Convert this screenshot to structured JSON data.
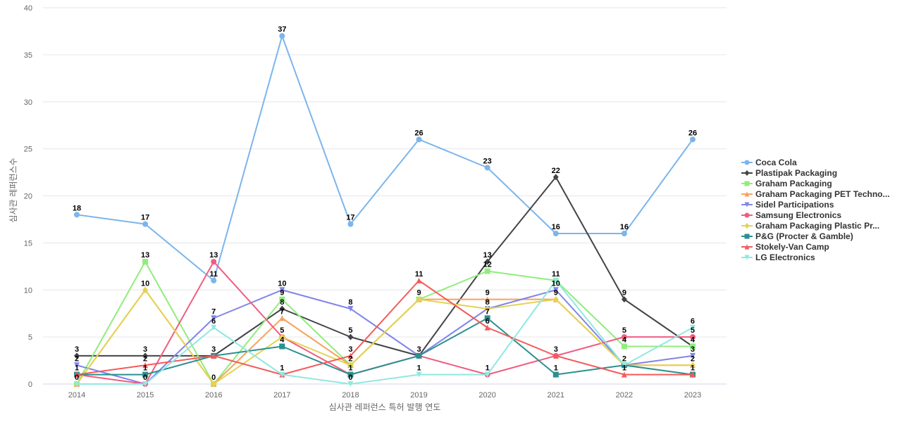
{
  "chart_data": {
    "type": "line",
    "x": [
      "2014",
      "2015",
      "2016",
      "2017",
      "2018",
      "2019",
      "2020",
      "2021",
      "2022",
      "2023"
    ],
    "xlabel": "심사관 레퍼런스 특허 발행 연도",
    "ylabel": "심사관 레퍼런스수",
    "ylim": [
      0,
      40
    ],
    "yticks": [
      0,
      5,
      10,
      15,
      20,
      25,
      30,
      35,
      40
    ],
    "grid": true,
    "legend_position": "right",
    "series": [
      {
        "name": "Coca Cola",
        "color": "#7cb5ec",
        "marker": "circle",
        "values": [
          18,
          17,
          11,
          37,
          17,
          26,
          23,
          16,
          16,
          26
        ]
      },
      {
        "name": "Plastipak Packaging",
        "color": "#434348",
        "marker": "diamond",
        "values": [
          3,
          3,
          3,
          8,
          5,
          3,
          13,
          22,
          9,
          4
        ]
      },
      {
        "name": "Graham Packaging",
        "color": "#90ed7d",
        "marker": "square",
        "values": [
          0,
          13,
          0,
          9,
          2,
          9,
          12,
          11,
          4,
          4
        ]
      },
      {
        "name": "Graham Packaging PET Techno...",
        "color": "#f7a35c",
        "marker": "triangle",
        "values": [
          0,
          10,
          0,
          7,
          2,
          9,
          9,
          9,
          2,
          2
        ]
      },
      {
        "name": "Sidel Participations",
        "color": "#8085e9",
        "marker": "triangle-down",
        "values": [
          2,
          0,
          7,
          10,
          8,
          3,
          8,
          10,
          2,
          3
        ]
      },
      {
        "name": "Samsung Electronics",
        "color": "#f15c80",
        "marker": "circle",
        "values": [
          1,
          0,
          13,
          5,
          1,
          3,
          1,
          3,
          5,
          5
        ]
      },
      {
        "name": "Graham Packaging Plastic Pr...",
        "color": "#e4d354",
        "marker": "diamond",
        "values": [
          0,
          10,
          0,
          5,
          2,
          9,
          8,
          9,
          2,
          2
        ]
      },
      {
        "name": "P&G (Procter & Gamble)",
        "color": "#2b908f",
        "marker": "square",
        "values": [
          1,
          1,
          3,
          4,
          1,
          3,
          7,
          1,
          2,
          1
        ]
      },
      {
        "name": "Stokely-Van Camp",
        "color": "#f45b5b",
        "marker": "triangle",
        "values": [
          1,
          2,
          3,
          1,
          3,
          11,
          6,
          3,
          1,
          1
        ]
      },
      {
        "name": "LG Electronics",
        "color": "#91e8e1",
        "marker": "triangle-down",
        "values": [
          0,
          0,
          6,
          1,
          0,
          1,
          1,
          11,
          2,
          6
        ]
      }
    ],
    "data_labels": [
      {
        "i": 0,
        "v": 18,
        "text": "18"
      },
      {
        "i": 1,
        "v": 17,
        "text": "17"
      },
      {
        "i": 2,
        "v": 11,
        "text": "11"
      },
      {
        "i": 3,
        "v": 37,
        "text": "37"
      },
      {
        "i": 4,
        "v": 17,
        "text": "17"
      },
      {
        "i": 5,
        "v": 26,
        "text": "26"
      },
      {
        "i": 6,
        "v": 23,
        "text": "23"
      },
      {
        "i": 7,
        "v": 22,
        "text": "22"
      },
      {
        "i": 7,
        "v": 16,
        "text": "16"
      },
      {
        "i": 8,
        "v": 16,
        "text": "16"
      },
      {
        "i": 9,
        "v": 26,
        "text": "26"
      },
      {
        "i": 0,
        "v": 3,
        "text": "3"
      },
      {
        "i": 0,
        "v": 2,
        "text": "2"
      },
      {
        "i": 0,
        "v": 1,
        "text": "1"
      },
      {
        "i": 0,
        "v": 0,
        "text": "0"
      },
      {
        "i": 1,
        "v": 13,
        "text": "13"
      },
      {
        "i": 1,
        "v": 10,
        "text": "10"
      },
      {
        "i": 1,
        "v": 3,
        "text": "3"
      },
      {
        "i": 1,
        "v": 2,
        "text": "2"
      },
      {
        "i": 1,
        "v": 1,
        "text": "1"
      },
      {
        "i": 1,
        "v": 0,
        "text": "0"
      },
      {
        "i": 2,
        "v": 13,
        "text": "13"
      },
      {
        "i": 2,
        "v": 7,
        "text": "7"
      },
      {
        "i": 2,
        "v": 6,
        "text": "6"
      },
      {
        "i": 2,
        "v": 3,
        "text": "3"
      },
      {
        "i": 2,
        "v": 0,
        "text": "0"
      },
      {
        "i": 3,
        "v": 10,
        "text": "10"
      },
      {
        "i": 3,
        "v": 9,
        "text": "9"
      },
      {
        "i": 3,
        "v": 8,
        "text": "8"
      },
      {
        "i": 3,
        "v": 7,
        "text": "7"
      },
      {
        "i": 3,
        "v": 5,
        "text": "5"
      },
      {
        "i": 3,
        "v": 4,
        "text": "4"
      },
      {
        "i": 3,
        "v": 1,
        "text": "1"
      },
      {
        "i": 4,
        "v": 8,
        "text": "8"
      },
      {
        "i": 4,
        "v": 5,
        "text": "5"
      },
      {
        "i": 4,
        "v": 3,
        "text": "3"
      },
      {
        "i": 4,
        "v": 2,
        "text": "2"
      },
      {
        "i": 4,
        "v": 1,
        "text": "1"
      },
      {
        "i": 4,
        "v": 0,
        "text": "0"
      },
      {
        "i": 5,
        "v": 11,
        "text": "11"
      },
      {
        "i": 5,
        "v": 9,
        "text": "9"
      },
      {
        "i": 5,
        "v": 3,
        "text": "3"
      },
      {
        "i": 5,
        "v": 1,
        "text": "1"
      },
      {
        "i": 6,
        "v": 13,
        "text": "13"
      },
      {
        "i": 6,
        "v": 12,
        "text": "12"
      },
      {
        "i": 6,
        "v": 9,
        "text": "9"
      },
      {
        "i": 6,
        "v": 8,
        "text": "8"
      },
      {
        "i": 6,
        "v": 7,
        "text": "7"
      },
      {
        "i": 6,
        "v": 6,
        "text": "6"
      },
      {
        "i": 6,
        "v": 1,
        "text": "1"
      },
      {
        "i": 7,
        "v": 11,
        "text": "11"
      },
      {
        "i": 7,
        "v": 10,
        "text": "10"
      },
      {
        "i": 7,
        "v": 9,
        "text": "9"
      },
      {
        "i": 7,
        "v": 3,
        "text": "3"
      },
      {
        "i": 7,
        "v": 1,
        "text": "1"
      },
      {
        "i": 8,
        "v": 9,
        "text": "9"
      },
      {
        "i": 8,
        "v": 5,
        "text": "5"
      },
      {
        "i": 8,
        "v": 4,
        "text": "4"
      },
      {
        "i": 8,
        "v": 2,
        "text": "2"
      },
      {
        "i": 8,
        "v": 1,
        "text": "1"
      },
      {
        "i": 9,
        "v": 6,
        "text": "6"
      },
      {
        "i": 9,
        "v": 5,
        "text": "5"
      },
      {
        "i": 9,
        "v": 4,
        "text": "4"
      },
      {
        "i": 9,
        "v": 3,
        "text": "3"
      },
      {
        "i": 9,
        "v": 2,
        "text": "2"
      },
      {
        "i": 9,
        "v": 1,
        "text": "1"
      }
    ]
  }
}
